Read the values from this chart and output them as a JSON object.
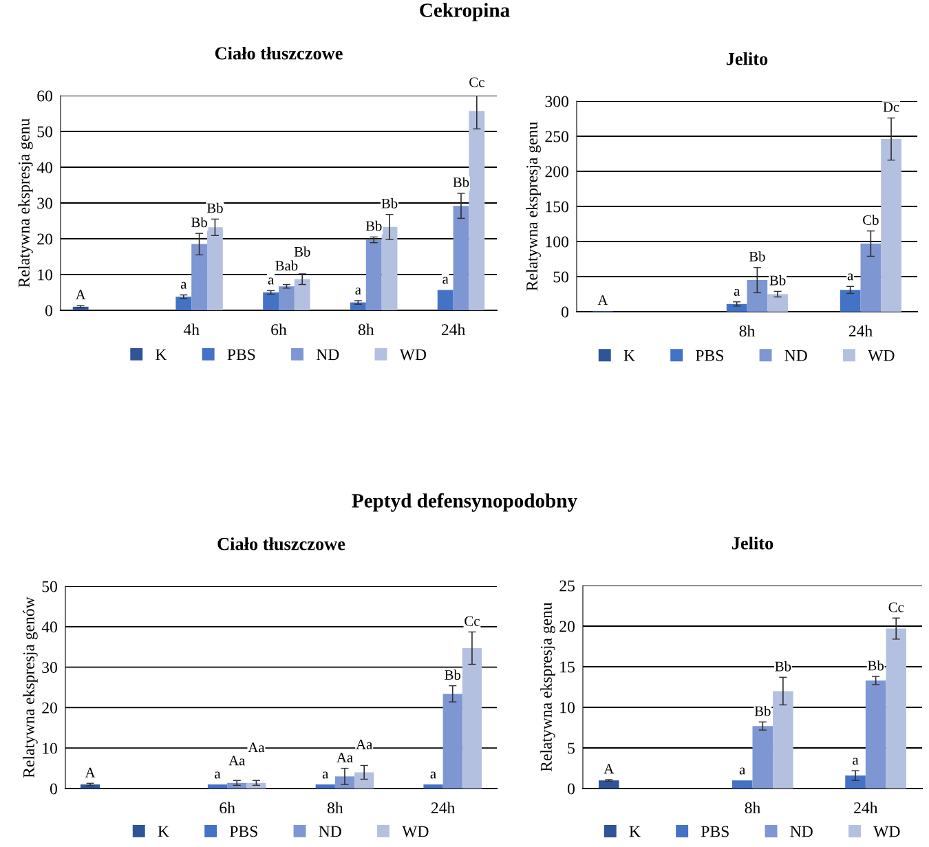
{
  "chart_data": [
    {
      "type": "bar",
      "title": "Ciało tłuszczowe",
      "ylabel": "Relatywna ekspresja genu",
      "annotations": [
        "Cekropina"
      ],
      "categories": [
        null,
        "4h",
        "6h",
        "8h",
        "24h"
      ],
      "ylim": [
        0,
        60
      ],
      "yticks": [
        0,
        10,
        20,
        30,
        40,
        50,
        60
      ],
      "grid": "y",
      "legend": "bottom",
      "series": [
        {
          "name": "K",
          "color": "#2f5597",
          "values": [
            1,
            null,
            null,
            null,
            null
          ],
          "errors": [
            0.3,
            null,
            null,
            null,
            null
          ],
          "value_labels": [
            "A",
            null,
            null,
            null,
            null
          ]
        },
        {
          "name": "PBS",
          "color": "#4472c4",
          "values": [
            null,
            3.8,
            5,
            2.2,
            5.7
          ],
          "errors": [
            null,
            0.5,
            0.5,
            0.5,
            null
          ],
          "value_labels": [
            null,
            "a",
            "a",
            "a",
            "a"
          ]
        },
        {
          "name": "ND",
          "color": "#7e96d2",
          "values": [
            null,
            18.5,
            6.7,
            19.7,
            29.2
          ],
          "errors": [
            null,
            3,
            0.5,
            0.8,
            3.5
          ],
          "value_labels": [
            null,
            "Bb",
            "Bab",
            "Bb",
            "Bb"
          ]
        },
        {
          "name": "WD",
          "color": "#b4c0e0",
          "values": [
            null,
            23.2,
            8.7,
            23.3,
            55.7
          ],
          "errors": [
            null,
            2.3,
            1.5,
            3.5,
            5
          ],
          "value_labels": [
            null,
            "Bb",
            "Bb",
            "Bb",
            "Cc"
          ]
        }
      ]
    },
    {
      "type": "bar",
      "title": "Jelito",
      "ylabel": "Relatywna ekspresja genu",
      "categories": [
        null,
        "8h",
        "24h"
      ],
      "ylim": [
        0,
        300
      ],
      "yticks": [
        0,
        50,
        100,
        150,
        200,
        250,
        300
      ],
      "grid": "y",
      "legend": "bottom",
      "series": [
        {
          "name": "K",
          "color": "#2f5597",
          "values": [
            1,
            null,
            null
          ],
          "value_labels": [
            "A",
            null,
            null
          ]
        },
        {
          "name": "PBS",
          "color": "#4472c4",
          "values": [
            null,
            11,
            31
          ],
          "errors": [
            null,
            3,
            5
          ],
          "value_labels": [
            null,
            "a",
            "a"
          ]
        },
        {
          "name": "ND",
          "color": "#7e96d2",
          "values": [
            null,
            45,
            97
          ],
          "errors": [
            null,
            18,
            18
          ],
          "value_labels": [
            null,
            "Bb",
            "Cb"
          ]
        },
        {
          "name": "WD",
          "color": "#b4c0e0",
          "values": [
            null,
            25,
            246
          ],
          "errors": [
            null,
            4,
            30
          ],
          "value_labels": [
            null,
            "Bb",
            "Dc"
          ]
        }
      ]
    },
    {
      "type": "bar",
      "title": "Ciało tłuszczowe",
      "ylabel": "Relatywna ekspresja genów",
      "annotations": [
        "Peptyd defensynopodobny"
      ],
      "categories": [
        null,
        "6h",
        "8h",
        "24h"
      ],
      "ylim": [
        0,
        50
      ],
      "yticks": [
        0,
        10,
        20,
        30,
        40,
        50
      ],
      "grid": "y",
      "legend": "bottom",
      "series": [
        {
          "name": "K",
          "color": "#2f5597",
          "values": [
            1,
            null,
            null,
            null
          ],
          "errors": [
            0.3,
            null,
            null,
            null
          ],
          "value_labels": [
            "A",
            null,
            null,
            null
          ]
        },
        {
          "name": "PBS",
          "color": "#4472c4",
          "values": [
            null,
            1,
            1,
            1
          ],
          "value_labels": [
            null,
            "a",
            "a",
            "a"
          ]
        },
        {
          "name": "ND",
          "color": "#7e96d2",
          "values": [
            null,
            1.4,
            3,
            23.4
          ],
          "errors": [
            null,
            0.6,
            2,
            2
          ],
          "value_labels": [
            null,
            "Aa",
            "Aa",
            "Bb"
          ]
        },
        {
          "name": "WD",
          "color": "#b4c0e0",
          "values": [
            null,
            1.4,
            4,
            34.7
          ],
          "errors": [
            null,
            0.6,
            1.7,
            4
          ],
          "value_labels": [
            null,
            "Aa",
            "Aa",
            "Cc"
          ]
        }
      ]
    },
    {
      "type": "bar",
      "title": "Jelito",
      "ylabel": "Relatywna ekspresja genu",
      "categories": [
        null,
        "8h",
        "24h"
      ],
      "ylim": [
        0,
        25
      ],
      "yticks": [
        0,
        5,
        10,
        15,
        20,
        25
      ],
      "grid": "y",
      "legend": "bottom",
      "series": [
        {
          "name": "K",
          "color": "#2f5597",
          "values": [
            1,
            null,
            null
          ],
          "errors": [
            0.1,
            null,
            null
          ],
          "value_labels": [
            "A",
            null,
            null
          ]
        },
        {
          "name": "PBS",
          "color": "#4472c4",
          "values": [
            null,
            1,
            1.6
          ],
          "errors": [
            null,
            null,
            0.6
          ],
          "value_labels": [
            null,
            "a",
            "a"
          ]
        },
        {
          "name": "ND",
          "color": "#7e96d2",
          "values": [
            null,
            7.7,
            13.3
          ],
          "errors": [
            null,
            0.5,
            0.5
          ],
          "value_labels": [
            null,
            "Bb",
            "Bb"
          ]
        },
        {
          "name": "WD",
          "color": "#b4c0e0",
          "values": [
            null,
            12,
            19.7
          ],
          "errors": [
            null,
            1.7,
            1.3
          ],
          "value_labels": [
            null,
            "Bb",
            "Cc"
          ]
        }
      ]
    }
  ]
}
